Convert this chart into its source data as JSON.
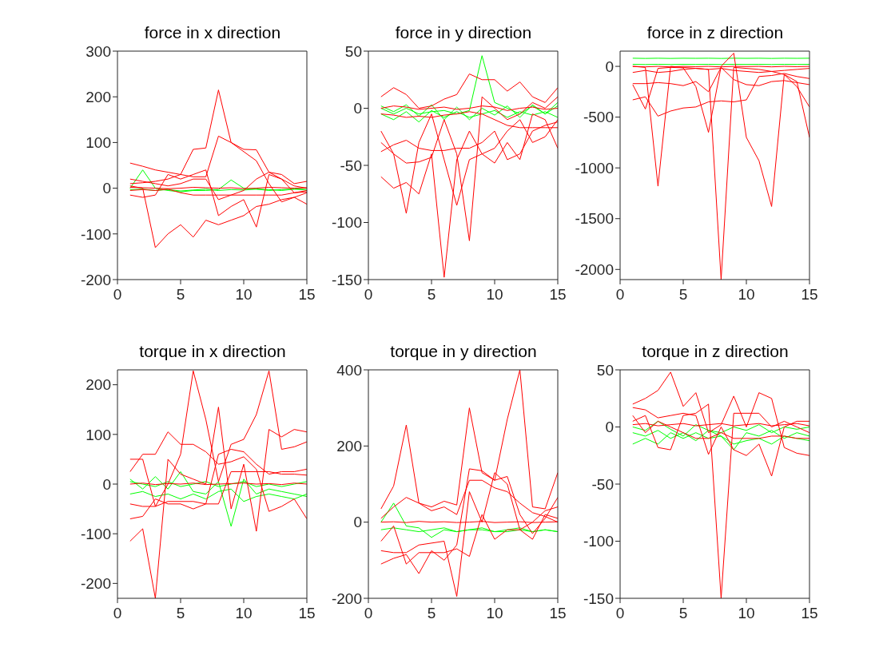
{
  "chart_data": [
    {
      "type": "line",
      "title": "force in x direction",
      "x": [
        1,
        2,
        3,
        4,
        5,
        6,
        7,
        8,
        9,
        10,
        11,
        12,
        13,
        14,
        15
      ],
      "xlim": [
        0,
        15
      ],
      "xticks": [
        0,
        5,
        10,
        15
      ],
      "ylim": [
        -200,
        300
      ],
      "yticks": [
        -200,
        -100,
        0,
        100,
        200,
        300
      ],
      "series": [
        {
          "color": "#00ff00",
          "values": [
            0,
            40,
            0,
            -5,
            -8,
            -5,
            -5,
            -3,
            18,
            0,
            -2,
            -3,
            -5,
            -2,
            0
          ]
        },
        {
          "color": "#00ff00",
          "values": [
            -3,
            -2,
            -5,
            -3,
            -6,
            -4,
            -2,
            -5,
            -3,
            -4,
            -2,
            -5,
            -3,
            -2,
            -4
          ]
        },
        {
          "color": "#ff0000",
          "values": [
            10,
            12,
            15,
            20,
            30,
            85,
            88,
            215,
            100,
            85,
            84,
            35,
            20,
            5,
            0
          ]
        },
        {
          "color": "#ff0000",
          "values": [
            55,
            48,
            40,
            35,
            30,
            25,
            25,
            114,
            100,
            80,
            60,
            10,
            -30,
            -20,
            -10
          ]
        },
        {
          "color": "#ff0000",
          "values": [
            5,
            0,
            -130,
            -100,
            -80,
            -107,
            -70,
            -80,
            -70,
            -60,
            -40,
            -35,
            -25,
            -20,
            -35
          ]
        },
        {
          "color": "#ff0000",
          "values": [
            -15,
            -20,
            -15,
            30,
            20,
            30,
            40,
            -60,
            -40,
            -25,
            -85,
            30,
            20,
            -10,
            -5
          ]
        },
        {
          "color": "#ff0000",
          "values": [
            20,
            15,
            10,
            5,
            10,
            20,
            20,
            -25,
            -15,
            -5,
            20,
            35,
            30,
            10,
            15
          ]
        },
        {
          "color": "#ff0000",
          "values": [
            2,
            1,
            0,
            -1,
            0,
            2,
            1,
            0,
            1,
            -1,
            0,
            2,
            1,
            0,
            1
          ]
        },
        {
          "color": "#ff0000",
          "values": [
            -5,
            -3,
            -5,
            -2,
            -10,
            -15,
            -15,
            -15,
            -15,
            -15,
            -15,
            -15,
            -15,
            -10,
            -8
          ]
        }
      ]
    },
    {
      "type": "line",
      "title": "force in y direction",
      "x": [
        1,
        2,
        3,
        4,
        5,
        6,
        7,
        8,
        9,
        10,
        11,
        12,
        13,
        14,
        15
      ],
      "xlim": [
        0,
        15
      ],
      "xticks": [
        0,
        5,
        10,
        15
      ],
      "ylim": [
        -150,
        50
      ],
      "yticks": [
        -150,
        -100,
        -50,
        0,
        50
      ],
      "series": [
        {
          "color": "#00ff00",
          "values": [
            0,
            -5,
            0,
            -5,
            -3,
            -2,
            -5,
            -2,
            46,
            5,
            0,
            -5,
            2,
            -5,
            5
          ]
        },
        {
          "color": "#00ff00",
          "values": [
            -5,
            -10,
            -3,
            -12,
            -2,
            -8,
            -3,
            -8,
            -5,
            -2,
            -8,
            -3,
            -6,
            -3,
            -8
          ]
        },
        {
          "color": "#00ff00",
          "values": [
            2,
            -3,
            3,
            -7,
            3,
            -10,
            1,
            -10,
            0,
            -6,
            2,
            -8,
            3,
            -5,
            2
          ]
        },
        {
          "color": "#ff0000",
          "values": [
            10,
            18,
            12,
            0,
            2,
            8,
            12,
            30,
            25,
            25,
            15,
            23,
            10,
            5,
            18
          ]
        },
        {
          "color": "#ff0000",
          "values": [
            -60,
            -70,
            -65,
            -75,
            -40,
            -148,
            -45,
            -20,
            -40,
            -48,
            -30,
            -45,
            -5,
            -10,
            -35
          ]
        },
        {
          "color": "#ff0000",
          "values": [
            -20,
            -40,
            -92,
            -30,
            -5,
            -45,
            -85,
            -45,
            -40,
            -35,
            -20,
            -10,
            -30,
            -25,
            -10
          ]
        },
        {
          "color": "#ff0000",
          "values": [
            -30,
            -40,
            -48,
            -47,
            -43,
            -10,
            -40,
            -116,
            10,
            0,
            -10,
            -5,
            5,
            0,
            10
          ]
        },
        {
          "color": "#ff0000",
          "values": [
            -38,
            -32,
            -28,
            -35,
            -37,
            -37,
            -35,
            -35,
            -30,
            -20,
            -45,
            -40,
            -20,
            -15,
            -12
          ]
        },
        {
          "color": "#ff0000",
          "values": [
            0,
            2,
            1,
            -1,
            0,
            1,
            -1,
            0,
            2,
            1,
            -2,
            0,
            1,
            -1,
            0
          ]
        },
        {
          "color": "#ff0000",
          "values": [
            -5,
            -6,
            -8,
            -7,
            -8,
            -6,
            -5,
            -3,
            -5,
            -10,
            -15,
            -17,
            -17,
            -17,
            -17
          ]
        }
      ]
    },
    {
      "type": "line",
      "title": "force in z direction",
      "x": [
        1,
        2,
        3,
        4,
        5,
        6,
        7,
        8,
        9,
        10,
        11,
        12,
        13,
        14,
        15
      ],
      "xlim": [
        0,
        15
      ],
      "xticks": [
        0,
        5,
        10,
        15
      ],
      "ylim": [
        -2100,
        150
      ],
      "yticks": [
        -2000,
        -1500,
        -1000,
        -500,
        0
      ],
      "series": [
        {
          "color": "#00ff00",
          "values": [
            80,
            78,
            80,
            78,
            80,
            79,
            80,
            78,
            80,
            79,
            80,
            78,
            80,
            79,
            80
          ]
        },
        {
          "color": "#00ff00",
          "values": [
            20,
            18,
            20,
            18,
            20,
            19,
            20,
            18,
            20,
            19,
            20,
            18,
            20,
            19,
            20
          ]
        },
        {
          "color": "#ff0000",
          "values": [
            0,
            -10,
            -1180,
            0,
            -10,
            -20,
            -30,
            -2100,
            -10,
            -20,
            -30,
            -50,
            -80,
            -200,
            -400
          ]
        },
        {
          "color": "#ff0000",
          "values": [
            -180,
            -420,
            -20,
            -10,
            -15,
            -200,
            -650,
            0,
            130,
            -700,
            -930,
            -1380,
            -80,
            -150,
            -700
          ]
        },
        {
          "color": "#ff0000",
          "values": [
            -330,
            -300,
            -490,
            -440,
            -410,
            -400,
            -350,
            -340,
            -350,
            -330,
            -100,
            -90,
            -70,
            -100,
            -120
          ]
        },
        {
          "color": "#ff0000",
          "values": [
            -170,
            -170,
            -160,
            -170,
            -190,
            -150,
            -250,
            -10,
            -130,
            -180,
            -190,
            -150,
            -140,
            -160,
            -180
          ]
        },
        {
          "color": "#ff0000",
          "values": [
            0,
            -5,
            0,
            -5,
            0,
            -3,
            0,
            -5,
            0,
            -2,
            0,
            -5,
            0,
            -3,
            0
          ]
        },
        {
          "color": "#ff0000",
          "values": [
            -60,
            -40,
            -60,
            -50,
            -30,
            -20,
            -30,
            -20,
            -40,
            -50,
            -60,
            -50,
            -40,
            -30,
            -20
          ]
        }
      ]
    },
    {
      "type": "line",
      "title": "torque in x direction",
      "x": [
        1,
        2,
        3,
        4,
        5,
        6,
        7,
        8,
        9,
        10,
        11,
        12,
        13,
        14,
        15
      ],
      "xlim": [
        0,
        15
      ],
      "xticks": [
        0,
        5,
        10,
        15
      ],
      "ylim": [
        -230,
        230
      ],
      "yticks": [
        -200,
        -100,
        0,
        100,
        200
      ],
      "series": [
        {
          "color": "#00ff00",
          "values": [
            10,
            -10,
            15,
            -10,
            25,
            -15,
            -20,
            5,
            -85,
            10,
            -20,
            -10,
            -15,
            -20,
            -25
          ]
        },
        {
          "color": "#00ff00",
          "values": [
            -20,
            -15,
            -25,
            -20,
            -30,
            -20,
            -30,
            -15,
            -10,
            -35,
            -25,
            -20,
            -25,
            -30,
            -20
          ]
        },
        {
          "color": "#00ff00",
          "values": [
            5,
            0,
            -5,
            5,
            -5,
            0,
            5,
            -5,
            0,
            5,
            -5,
            0,
            -5,
            0,
            5
          ]
        },
        {
          "color": "#ff0000",
          "values": [
            50,
            50,
            -45,
            0,
            60,
            228,
            130,
            5,
            80,
            90,
            140,
            228,
            70,
            75,
            85
          ]
        },
        {
          "color": "#ff0000",
          "values": [
            -115,
            -90,
            -230,
            50,
            20,
            10,
            0,
            155,
            -50,
            40,
            -95,
            110,
            95,
            110,
            105
          ]
        },
        {
          "color": "#ff0000",
          "values": [
            25,
            60,
            60,
            105,
            80,
            80,
            65,
            40,
            45,
            55,
            30,
            -55,
            -45,
            -30,
            -70
          ]
        },
        {
          "color": "#ff0000",
          "values": [
            -70,
            -65,
            -30,
            -40,
            -40,
            -50,
            -40,
            60,
            70,
            65,
            40,
            20,
            25,
            25,
            30
          ]
        },
        {
          "color": "#ff0000",
          "values": [
            0,
            2,
            -1,
            1,
            0,
            2,
            -1,
            0,
            1,
            2,
            0,
            1,
            -1,
            2,
            0
          ]
        },
        {
          "color": "#ff0000",
          "values": [
            -40,
            -45,
            -45,
            -35,
            -35,
            -35,
            -40,
            -40,
            25,
            25,
            25,
            25,
            20,
            20,
            18
          ]
        }
      ]
    },
    {
      "type": "line",
      "title": "torque in y direction",
      "x": [
        1,
        2,
        3,
        4,
        5,
        6,
        7,
        8,
        9,
        10,
        11,
        12,
        13,
        14,
        15
      ],
      "xlim": [
        0,
        15
      ],
      "xticks": [
        0,
        5,
        10,
        15
      ],
      "ylim": [
        -200,
        400
      ],
      "yticks": [
        -200,
        0,
        200,
        400
      ],
      "series": [
        {
          "color": "#00ff00",
          "values": [
            0,
            50,
            -10,
            -15,
            -40,
            -20,
            -25,
            -20,
            -20,
            -25,
            -25,
            -20,
            -25,
            -20,
            -25
          ]
        },
        {
          "color": "#00ff00",
          "values": [
            -20,
            -15,
            -20,
            -25,
            -20,
            -15,
            -25,
            -20,
            -15,
            -25,
            -20,
            -15,
            -25,
            -20,
            -25
          ]
        },
        {
          "color": "#ff0000",
          "values": [
            35,
            95,
            255,
            50,
            40,
            55,
            45,
            300,
            130,
            110,
            270,
            400,
            40,
            35,
            130
          ]
        },
        {
          "color": "#ff0000",
          "values": [
            -110,
            -95,
            -85,
            -135,
            -75,
            -100,
            -60,
            140,
            135,
            110,
            120,
            20,
            -30,
            10,
            65
          ]
        },
        {
          "color": "#ff0000",
          "values": [
            -75,
            -80,
            -80,
            -60,
            -55,
            -50,
            -195,
            80,
            0,
            130,
            100,
            -20,
            0,
            30,
            40
          ]
        },
        {
          "color": "#ff0000",
          "values": [
            -50,
            -10,
            -110,
            -80,
            -80,
            -80,
            -70,
            -90,
            20,
            -45,
            -20,
            -20,
            -45,
            20,
            10
          ]
        },
        {
          "color": "#ff0000",
          "values": [
            10,
            40,
            65,
            50,
            30,
            40,
            20,
            110,
            110,
            90,
            80,
            50,
            25,
            15,
            0
          ]
        },
        {
          "color": "#ff0000",
          "values": [
            0,
            1,
            -1,
            2,
            0,
            1,
            -1,
            0,
            2,
            -1,
            0,
            1,
            -1,
            0,
            1
          ]
        }
      ]
    },
    {
      "type": "line",
      "title": "torque in z direction",
      "x": [
        1,
        2,
        3,
        4,
        5,
        6,
        7,
        8,
        9,
        10,
        11,
        12,
        13,
        14,
        15
      ],
      "xlim": [
        0,
        15
      ],
      "xticks": [
        0,
        5,
        10,
        15
      ],
      "ylim": [
        -150,
        50
      ],
      "yticks": [
        -150,
        -100,
        -50,
        0,
        50
      ],
      "series": [
        {
          "color": "#00ff00",
          "values": [
            -15,
            -10,
            -15,
            -5,
            -10,
            -5,
            -10,
            -8,
            -15,
            -12,
            -10,
            -15,
            -8,
            -10,
            -12
          ]
        },
        {
          "color": "#00ff00",
          "values": [
            -5,
            -8,
            -3,
            -10,
            -5,
            -12,
            -3,
            -8,
            -20,
            -5,
            -8,
            -3,
            -10,
            -5,
            -8
          ]
        },
        {
          "color": "#00ff00",
          "values": [
            0,
            -3,
            5,
            -2,
            -8,
            2,
            -3,
            -5,
            0,
            -3,
            2,
            -5,
            0,
            -2,
            0
          ]
        },
        {
          "color": "#ff0000",
          "values": [
            20,
            25,
            32,
            48,
            18,
            30,
            -5,
            2,
            27,
            0,
            30,
            25,
            -18,
            -23,
            -25
          ]
        },
        {
          "color": "#ff0000",
          "values": [
            17,
            15,
            8,
            10,
            12,
            10,
            -24,
            0,
            -20,
            -25,
            -15,
            -43,
            0,
            5,
            5
          ]
        },
        {
          "color": "#ff0000",
          "values": [
            5,
            10,
            -18,
            -20,
            10,
            12,
            20,
            -150,
            12,
            12,
            12,
            0,
            5,
            0,
            -5
          ]
        },
        {
          "color": "#ff0000",
          "values": [
            2,
            3,
            1,
            2,
            3,
            1,
            2,
            3,
            1,
            2,
            3,
            1,
            2,
            3,
            1
          ]
        },
        {
          "color": "#ff0000",
          "values": [
            10,
            -5,
            5,
            0,
            -5,
            -10,
            -10,
            -5,
            -10,
            -10,
            -10,
            -8,
            -8,
            -10,
            -10
          ]
        }
      ]
    }
  ]
}
